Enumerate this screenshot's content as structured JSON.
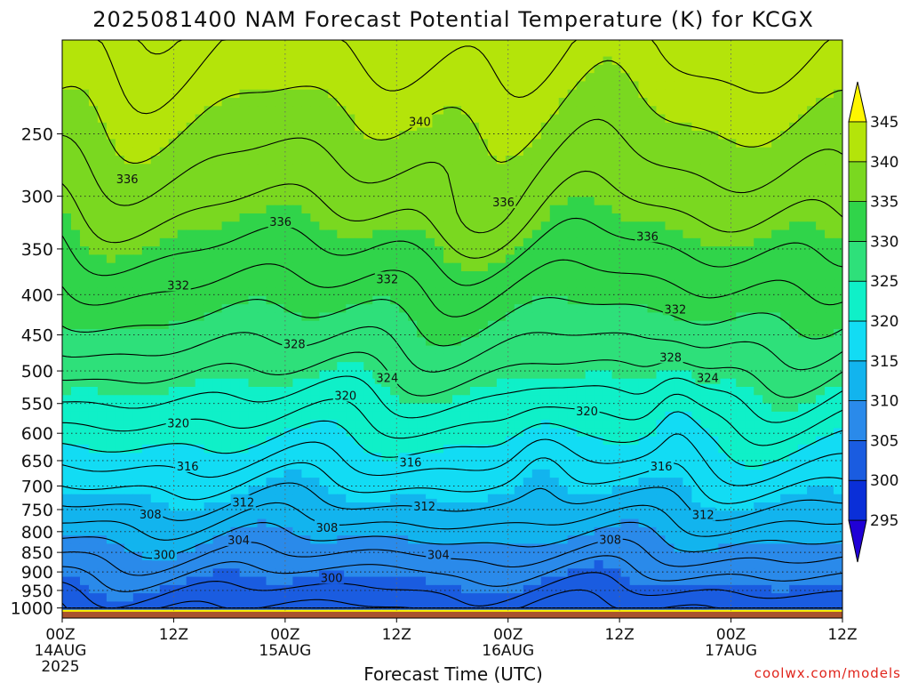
{
  "chart_data": {
    "type": "heatmap",
    "title": "2025081400 NAM Forecast Potential Temperature (K) for KCGX",
    "xlabel": "Forecast Time (UTC)",
    "ylabel": "",
    "x_unit": "hours since 2025-08-14 00Z",
    "x_range": [
      0,
      84
    ],
    "x_ticks": [
      {
        "hour": 0,
        "line1": "00Z",
        "line2": "14AUG",
        "line3": "2025"
      },
      {
        "hour": 12,
        "line1": "12Z",
        "line2": "",
        "line3": ""
      },
      {
        "hour": 24,
        "line1": "00Z",
        "line2": "15AUG",
        "line3": ""
      },
      {
        "hour": 36,
        "line1": "12Z",
        "line2": "",
        "line3": ""
      },
      {
        "hour": 48,
        "line1": "00Z",
        "line2": "16AUG",
        "line3": ""
      },
      {
        "hour": 60,
        "line1": "12Z",
        "line2": "",
        "line3": ""
      },
      {
        "hour": 72,
        "line1": "00Z",
        "line2": "17AUG",
        "line3": ""
      },
      {
        "hour": 84,
        "line1": "12Z",
        "line2": "",
        "line3": ""
      }
    ],
    "y_axis": {
      "scale": "log-pressure",
      "unit": "hPa",
      "range": [
        1030,
        190
      ],
      "ticks": [
        250,
        300,
        350,
        400,
        450,
        500,
        550,
        600,
        650,
        700,
        750,
        800,
        850,
        900,
        950,
        1000
      ]
    },
    "grid": "dotted",
    "colorbar": {
      "placement": "right",
      "labels": [
        295,
        300,
        305,
        310,
        315,
        320,
        325,
        330,
        335,
        340,
        345
      ],
      "colors": [
        "#2000d6",
        "#0a2fd8",
        "#1a5ce0",
        "#2a8aea",
        "#12b4ee",
        "#12dcf4",
        "#0ff0c8",
        "#2ee07a",
        "#30d44a",
        "#7ad820",
        "#b4e40a",
        "#fef600"
      ],
      "extend": "both"
    },
    "ground_color": "#a9532e",
    "contour_labels": [
      {
        "value": "340",
        "hour": 38.5,
        "p": 241
      },
      {
        "value": "336",
        "hour": 7.0,
        "p": 285
      },
      {
        "value": "336",
        "hour": 23.5,
        "p": 323
      },
      {
        "value": "336",
        "hour": 47.5,
        "p": 305
      },
      {
        "value": "336",
        "hour": 63.0,
        "p": 337
      },
      {
        "value": "332",
        "hour": 12.5,
        "p": 389
      },
      {
        "value": "332",
        "hour": 35.0,
        "p": 382
      },
      {
        "value": "332",
        "hour": 66.0,
        "p": 417
      },
      {
        "value": "328",
        "hour": 25.0,
        "p": 462
      },
      {
        "value": "328",
        "hour": 65.5,
        "p": 480
      },
      {
        "value": "324",
        "hour": 35.0,
        "p": 510
      },
      {
        "value": "324",
        "hour": 69.5,
        "p": 510
      },
      {
        "value": "320",
        "hour": 12.5,
        "p": 582
      },
      {
        "value": "320",
        "hour": 30.5,
        "p": 537
      },
      {
        "value": "320",
        "hour": 56.5,
        "p": 562
      },
      {
        "value": "316",
        "hour": 13.5,
        "p": 660
      },
      {
        "value": "316",
        "hour": 37.5,
        "p": 653
      },
      {
        "value": "316",
        "hour": 64.5,
        "p": 660
      },
      {
        "value": "312",
        "hour": 19.5,
        "p": 734
      },
      {
        "value": "312",
        "hour": 39.0,
        "p": 742
      },
      {
        "value": "312",
        "hour": 69.0,
        "p": 761
      },
      {
        "value": "308",
        "hour": 9.5,
        "p": 760
      },
      {
        "value": "308",
        "hour": 28.5,
        "p": 790
      },
      {
        "value": "308",
        "hour": 59.0,
        "p": 818
      },
      {
        "value": "304",
        "hour": 19.0,
        "p": 819
      },
      {
        "value": "304",
        "hour": 40.5,
        "p": 855
      },
      {
        "value": "300",
        "hour": 11.0,
        "p": 855
      },
      {
        "value": "300",
        "hour": 29.0,
        "p": 915
      }
    ],
    "colorbar_levels_hint": "theta increases with height; 300 K near surface, 345 K near 200 hPa"
  },
  "watermark": "coolwx.com/models"
}
